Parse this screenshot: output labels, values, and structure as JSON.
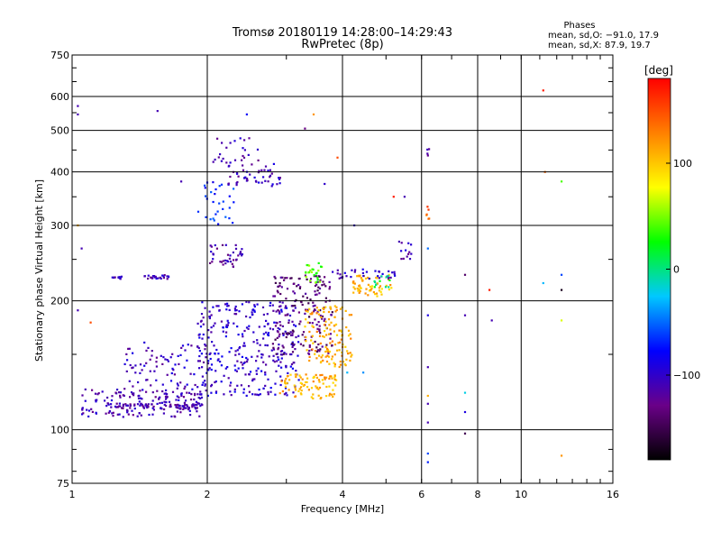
{
  "chart_data": {
    "type": "scatter",
    "title": "Tromsø 20180119 14:28:00–14:29:43",
    "subtitle": "RwPretec (8p)",
    "xlabel": "Frequency [MHz]",
    "ylabel": "Stationary phase Virtual Height [km]",
    "x_scale": "log",
    "y_scale": "log",
    "xlim": [
      1,
      16
    ],
    "ylim": [
      75,
      750
    ],
    "xticks": [
      {
        "label": "1",
        "value": 1
      },
      {
        "label": "2",
        "value": 2
      },
      {
        "label": "4",
        "value": 4
      },
      {
        "label": "6",
        "value": 6
      },
      {
        "label": "8",
        "value": 8
      },
      {
        "label": "10",
        "value": 10
      },
      {
        "label": "16",
        "value": 16
      }
    ],
    "yticks": [
      {
        "label": "75",
        "value": 75
      },
      {
        "label": "100",
        "value": 100
      },
      {
        "label": "200",
        "value": 200
      },
      {
        "label": "300",
        "value": 300
      },
      {
        "label": "400",
        "value": 400
      },
      {
        "label": "500",
        "value": 500
      },
      {
        "label": "600",
        "value": 600
      },
      {
        "label": "750",
        "value": 750
      }
    ],
    "grid": true,
    "phase_stats": {
      "heading": "Phases",
      "line1": "mean, sd,O: −91.0, 17.9",
      "line2": "mean, sd,X:  87.9, 19.7"
    },
    "colorbar": {
      "label": "[deg]",
      "range": [
        -180,
        180
      ],
      "ticks": [
        {
          "label": "100",
          "value": 100
        },
        {
          "label": "0",
          "value": 0
        },
        {
          "label": "−100",
          "value": -100
        }
      ],
      "colors": [
        "#000000",
        "#6a0088",
        "#0000ff",
        "#00c8ff",
        "#00ff00",
        "#ffff00",
        "#ff8000",
        "#ff0000"
      ]
    },
    "scatter_regions": [
      {
        "x": [
          1.05,
          1.95
        ],
        "y": [
          107,
          125
        ],
        "phase": -110,
        "count": 160
      },
      {
        "x": [
          1.25,
          1.95
        ],
        "y": [
          112,
          115
        ],
        "phase": -115,
        "count": 70
      },
      {
        "x": [
          1.3,
          2.0
        ],
        "y": [
          120,
          160
        ],
        "phase": -105,
        "count": 90
      },
      {
        "x": [
          1.9,
          3.2
        ],
        "y": [
          120,
          200
        ],
        "phase": -100,
        "count": 320
      },
      {
        "x": [
          2.8,
          3.8
        ],
        "y": [
          150,
          230
        ],
        "phase": -135,
        "count": 180
      },
      {
        "x": [
          2.9,
          3.9
        ],
        "y": [
          118,
          135
        ],
        "phase": 110,
        "count": 90
      },
      {
        "x": [
          3.3,
          4.2
        ],
        "y": [
          140,
          195
        ],
        "phase": 112,
        "count": 130
      },
      {
        "x": [
          4.2,
          5.2
        ],
        "y": [
          205,
          230
        ],
        "phase": 105,
        "count": 60
      },
      {
        "x": [
          3.8,
          5.3
        ],
        "y": [
          225,
          238
        ],
        "phase": -105,
        "count": 35
      },
      {
        "x": [
          2.0,
          2.4
        ],
        "y": [
          240,
          270
        ],
        "phase": -115,
        "count": 40
      },
      {
        "x": [
          3.3,
          3.6
        ],
        "y": [
          220,
          245
        ],
        "phase": 40,
        "count": 25
      },
      {
        "x": [
          1.9,
          2.3
        ],
        "y": [
          300,
          380
        ],
        "phase": -70,
        "count": 30
      },
      {
        "x": [
          2.2,
          2.95
        ],
        "y": [
          370,
          420
        ],
        "phase": -105,
        "count": 50
      },
      {
        "x": [
          2.05,
          2.6
        ],
        "y": [
          420,
          480
        ],
        "phase": -110,
        "count": 25
      },
      {
        "x": [
          5.4,
          5.7
        ],
        "y": [
          250,
          275
        ],
        "phase": -110,
        "count": 12
      },
      {
        "x": [
          1.22,
          1.3
        ],
        "y": [
          225,
          228
        ],
        "phase": -110,
        "count": 12
      },
      {
        "x": [
          1.45,
          1.65
        ],
        "y": [
          225,
          230
        ],
        "phase": -110,
        "count": 25
      },
      {
        "x": [
          4.6,
          5.1
        ],
        "y": [
          215,
          230
        ],
        "phase": 10,
        "count": 12
      },
      {
        "x": [
          6.15,
          6.25
        ],
        "y": [
          310,
          340
        ],
        "phase": 140,
        "count": 6
      },
      {
        "x": [
          6.15,
          6.25
        ],
        "y": [
          435,
          460
        ],
        "phase": -110,
        "count": 4
      }
    ],
    "isolated_points": [
      {
        "x": 11.2,
        "y": 620,
        "phase": 170
      },
      {
        "x": 11.3,
        "y": 400,
        "phase": 140
      },
      {
        "x": 12.3,
        "y": 380,
        "phase": 40
      },
      {
        "x": 12.3,
        "y": 230,
        "phase": -60
      },
      {
        "x": 11.2,
        "y": 220,
        "phase": -30
      },
      {
        "x": 12.3,
        "y": 212,
        "phase": -170
      },
      {
        "x": 12.3,
        "y": 180,
        "phase": 70
      },
      {
        "x": 12.3,
        "y": 87,
        "phase": 120
      },
      {
        "x": 8.5,
        "y": 212,
        "phase": 170
      },
      {
        "x": 8.6,
        "y": 180,
        "phase": -110
      },
      {
        "x": 7.5,
        "y": 230,
        "phase": -140
      },
      {
        "x": 7.5,
        "y": 185,
        "phase": -110
      },
      {
        "x": 7.5,
        "y": 98,
        "phase": -150
      },
      {
        "x": 7.5,
        "y": 122,
        "phase": -20
      },
      {
        "x": 7.5,
        "y": 110,
        "phase": -90
      },
      {
        "x": 6.2,
        "y": 265,
        "phase": -50
      },
      {
        "x": 6.2,
        "y": 185,
        "phase": -90
      },
      {
        "x": 6.2,
        "y": 140,
        "phase": -110
      },
      {
        "x": 6.2,
        "y": 120,
        "phase": 110
      },
      {
        "x": 6.2,
        "y": 115,
        "phase": -110
      },
      {
        "x": 6.2,
        "y": 104,
        "phase": -110
      },
      {
        "x": 6.2,
        "y": 88,
        "phase": -60
      },
      {
        "x": 6.2,
        "y": 84,
        "phase": -70
      },
      {
        "x": 1.03,
        "y": 570,
        "phase": -110
      },
      {
        "x": 1.03,
        "y": 545,
        "phase": -110
      },
      {
        "x": 1.03,
        "y": 300,
        "phase": 110
      },
      {
        "x": 1.05,
        "y": 265,
        "phase": -110
      },
      {
        "x": 1.03,
        "y": 190,
        "phase": -110
      },
      {
        "x": 1.1,
        "y": 178,
        "phase": 150
      },
      {
        "x": 1.55,
        "y": 555,
        "phase": -110
      },
      {
        "x": 1.75,
        "y": 380,
        "phase": -110
      },
      {
        "x": 2.45,
        "y": 545,
        "phase": -80
      },
      {
        "x": 3.3,
        "y": 505,
        "phase": -130
      },
      {
        "x": 3.45,
        "y": 545,
        "phase": 120
      },
      {
        "x": 3.65,
        "y": 375,
        "phase": -100
      },
      {
        "x": 3.9,
        "y": 432,
        "phase": 150
      },
      {
        "x": 4.25,
        "y": 300,
        "phase": -100
      },
      {
        "x": 5.2,
        "y": 350,
        "phase": 170
      },
      {
        "x": 5.5,
        "y": 350,
        "phase": -110
      },
      {
        "x": 5.35,
        "y": 275,
        "phase": -110
      },
      {
        "x": 4.1,
        "y": 136,
        "phase": -30
      },
      {
        "x": 4.45,
        "y": 136,
        "phase": -40
      }
    ]
  }
}
